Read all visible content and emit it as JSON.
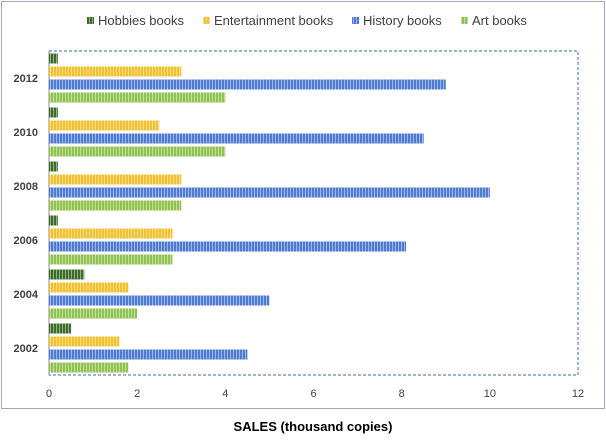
{
  "chart_data": {
    "type": "bar",
    "orientation": "horizontal",
    "title": "",
    "xlabel": "SALES (thousand copies)",
    "ylabel": "",
    "xlim": [
      0,
      12
    ],
    "xticks": [
      0,
      2,
      4,
      6,
      8,
      10,
      12
    ],
    "grid": false,
    "legend_position": "top",
    "categories": [
      "2012",
      "2010",
      "2008",
      "2006",
      "2004",
      "2002"
    ],
    "series": [
      {
        "name": "Hobbies books",
        "color": "#3d6b2a",
        "values": [
          0.2,
          0.2,
          0.2,
          0.2,
          0.8,
          0.5
        ]
      },
      {
        "name": "Entertainment books",
        "color": "#f2c22e",
        "values": [
          3.0,
          2.5,
          3.0,
          2.8,
          1.8,
          1.6
        ]
      },
      {
        "name": "History books",
        "color": "#4f7bd2",
        "values": [
          9.0,
          8.5,
          10.0,
          8.1,
          5.0,
          4.5
        ]
      },
      {
        "name": "Art books",
        "color": "#8fc24f",
        "values": [
          4.0,
          4.0,
          3.0,
          2.8,
          2.0,
          1.8
        ]
      }
    ]
  }
}
